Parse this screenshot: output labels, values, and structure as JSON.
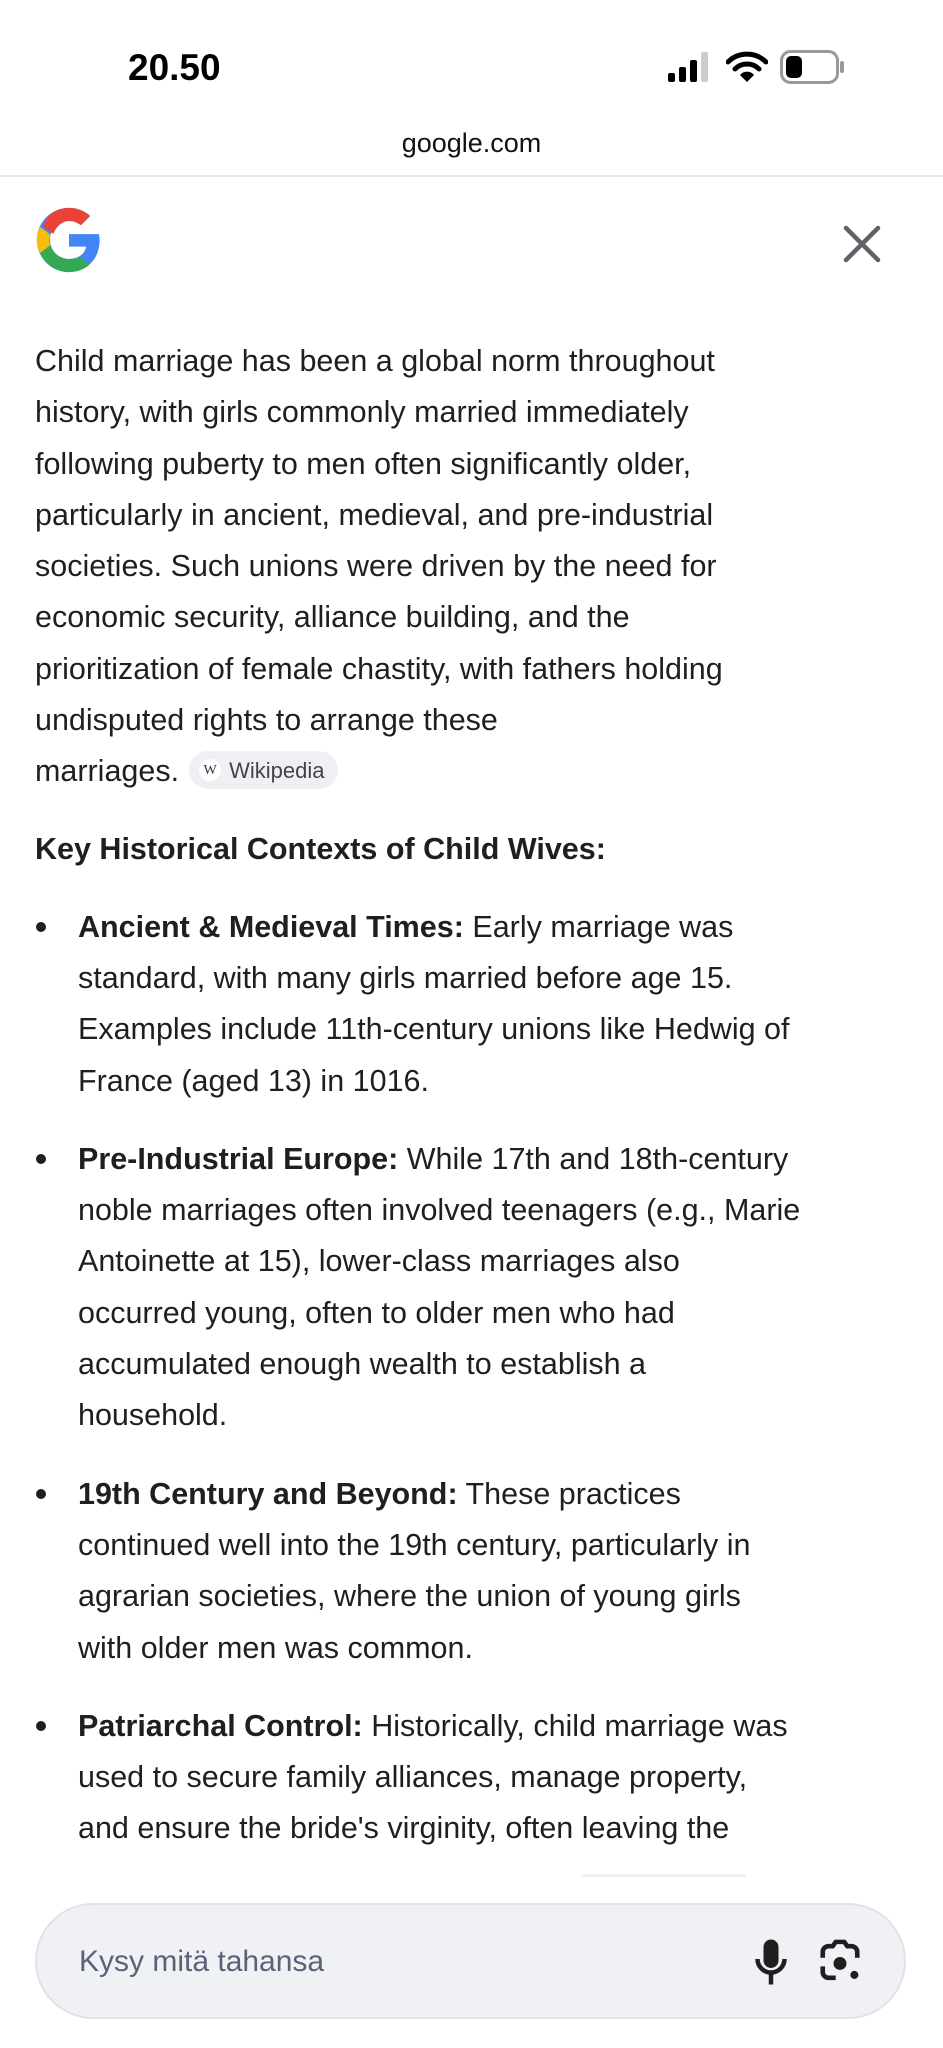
{
  "status_bar": {
    "time": "20.50",
    "icons": [
      "cellular-signal-icon",
      "wifi-icon",
      "battery-icon"
    ]
  },
  "browser": {
    "url": "google.com"
  },
  "header": {
    "logo": "google-g-logo",
    "close_icon": "close-icon"
  },
  "intro": {
    "lines": [
      "Child marriage has been a global norm throughout",
      "history, with girls commonly married immediately",
      "following puberty to men often significantly older,",
      "particularly in ancient, medieval, and pre-industrial",
      "societies. Such unions were driven by the need for",
      "economic security, alliance building, and the",
      "prioritization of female chastity, with fathers holding",
      "undisputed rights to arrange these",
      "marriages."
    ],
    "source_chip": {
      "icon": "W",
      "label": "Wikipedia"
    }
  },
  "section": {
    "heading": "Key Historical Contexts of Child Wives:",
    "items": [
      {
        "label": "Ancient & Medieval Times:",
        "lines": [
          " Early marriage was",
          "standard, with many girls married before age 15.",
          "Examples include 11th-century unions like Hedwig of",
          "France (aged 13) in 1016."
        ]
      },
      {
        "label": "Pre-Industrial Europe:",
        "lines": [
          " While 17th and 18th-century",
          "noble marriages often involved teenagers (e.g., Marie",
          "Antoinette at 15), lower-class marriages also",
          "occurred young, often to older men who had",
          "accumulated enough wealth to establish a",
          "household."
        ]
      },
      {
        "label": "19th Century and Beyond:",
        "lines": [
          " These practices",
          "continued well into the 19th century, particularly in",
          "agrarian societies, where the union of young girls",
          "with older men was common."
        ]
      },
      {
        "label": "Patriarchal Control:",
        "lines": [
          " Historically, child marriage was",
          "used to secure family alliances, manage property,",
          "and ensure the bride's virginity, often leaving the"
        ]
      }
    ]
  },
  "search": {
    "placeholder": "Kysy mitä tahansa",
    "value": "",
    "mic_icon": "microphone-icon",
    "lens_icon": "google-lens-icon"
  },
  "colors": {
    "placeholder": "#5b6179",
    "search_bg": "#eff1f5",
    "chip_bg": "#eef0f3"
  }
}
